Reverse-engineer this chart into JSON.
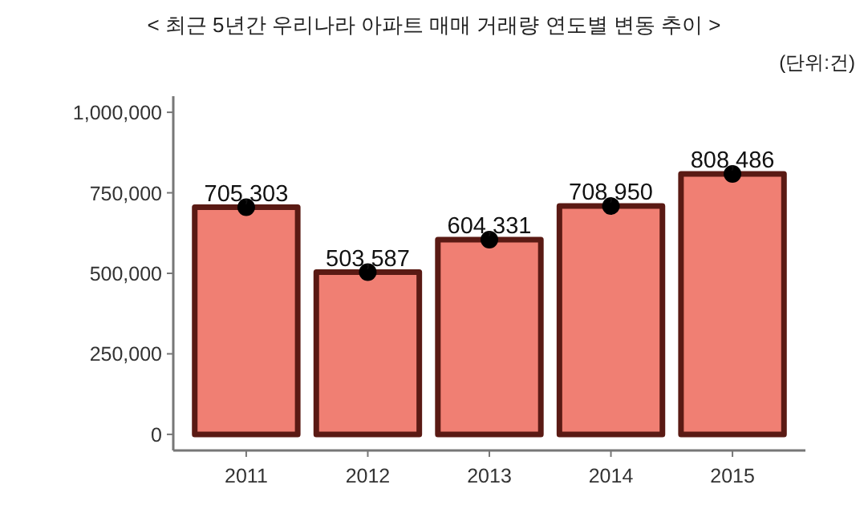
{
  "chart_data": {
    "type": "bar",
    "title": "< 최근 5년간 우리나라 아파트 매매 거래량 연도별 변동 추이 >",
    "annotations": [
      "(단위:건)"
    ],
    "categories": [
      "2011",
      "2012",
      "2013",
      "2014",
      "2015"
    ],
    "series": [
      {
        "color": "#f07f73",
        "values": [
          705303,
          503587,
          604331,
          708950,
          808486
        ],
        "value_labels": [
          "705,303",
          "503,587",
          "604,331",
          "708,950",
          "808,486"
        ]
      },
      {
        "type": "scatter",
        "color": "#000000",
        "marker": "circle",
        "values": [
          705303,
          503587,
          604331,
          708950,
          808486
        ]
      }
    ],
    "ylim": [
      -50000,
      1050000
    ],
    "yticks": [
      0,
      {
        "value": 250000,
        "label": "250,000"
      },
      {
        "value": 500000,
        "label": "500,000"
      },
      {
        "value": 750000,
        "label": "750,000"
      },
      {
        "value": 1000000,
        "label": "1,000,000"
      }
    ],
    "grid": false
  }
}
